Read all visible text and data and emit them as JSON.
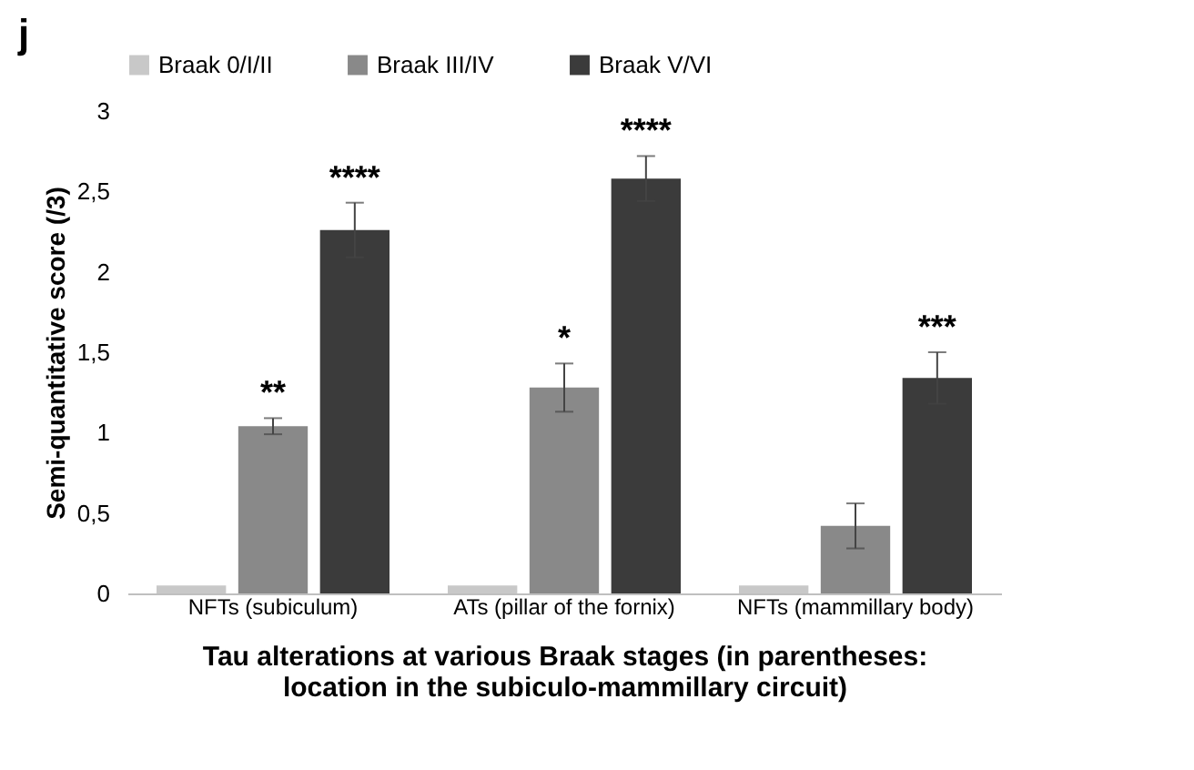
{
  "chart_data": {
    "type": "bar",
    "xlabel": "Tau alterations at various Braak stages (in parentheses: location in the subiculo-mammillary circuit)",
    "ylabel": "Semi-quantitative score (/3)",
    "categories": [
      "NFTs (subiculum)",
      "ATs (pillar of the fornix)",
      "NFTs (mammillary body)"
    ],
    "series": [
      {
        "name": "Braak 0/I/II",
        "color": "#c8c8c8",
        "values": [
          0.05,
          0.05,
          0.05
        ]
      },
      {
        "name": "Braak III/IV",
        "color": "#898989",
        "values": [
          1.04,
          1.28,
          0.42
        ],
        "errors": [
          0.05,
          0.15,
          0.14
        ],
        "value_labels": [
          "**",
          "*",
          null
        ]
      },
      {
        "name": "Braak V/VI",
        "color": "#3b3b3b",
        "values": [
          2.26,
          2.58,
          1.34
        ],
        "errors": [
          0.17,
          0.14,
          0.16
        ],
        "value_labels": [
          "****",
          "****",
          "***"
        ]
      }
    ],
    "ylim": [
      0,
      3
    ],
    "yticks": [
      0,
      {
        "value": 0.5,
        "label": "0,5"
      },
      1,
      {
        "value": 1.5,
        "label": "1,5"
      },
      2,
      {
        "value": 2.5,
        "label": "2,5"
      },
      3
    ],
    "annotations": [
      "j"
    ],
    "legend": "top",
    "grid": false
  }
}
